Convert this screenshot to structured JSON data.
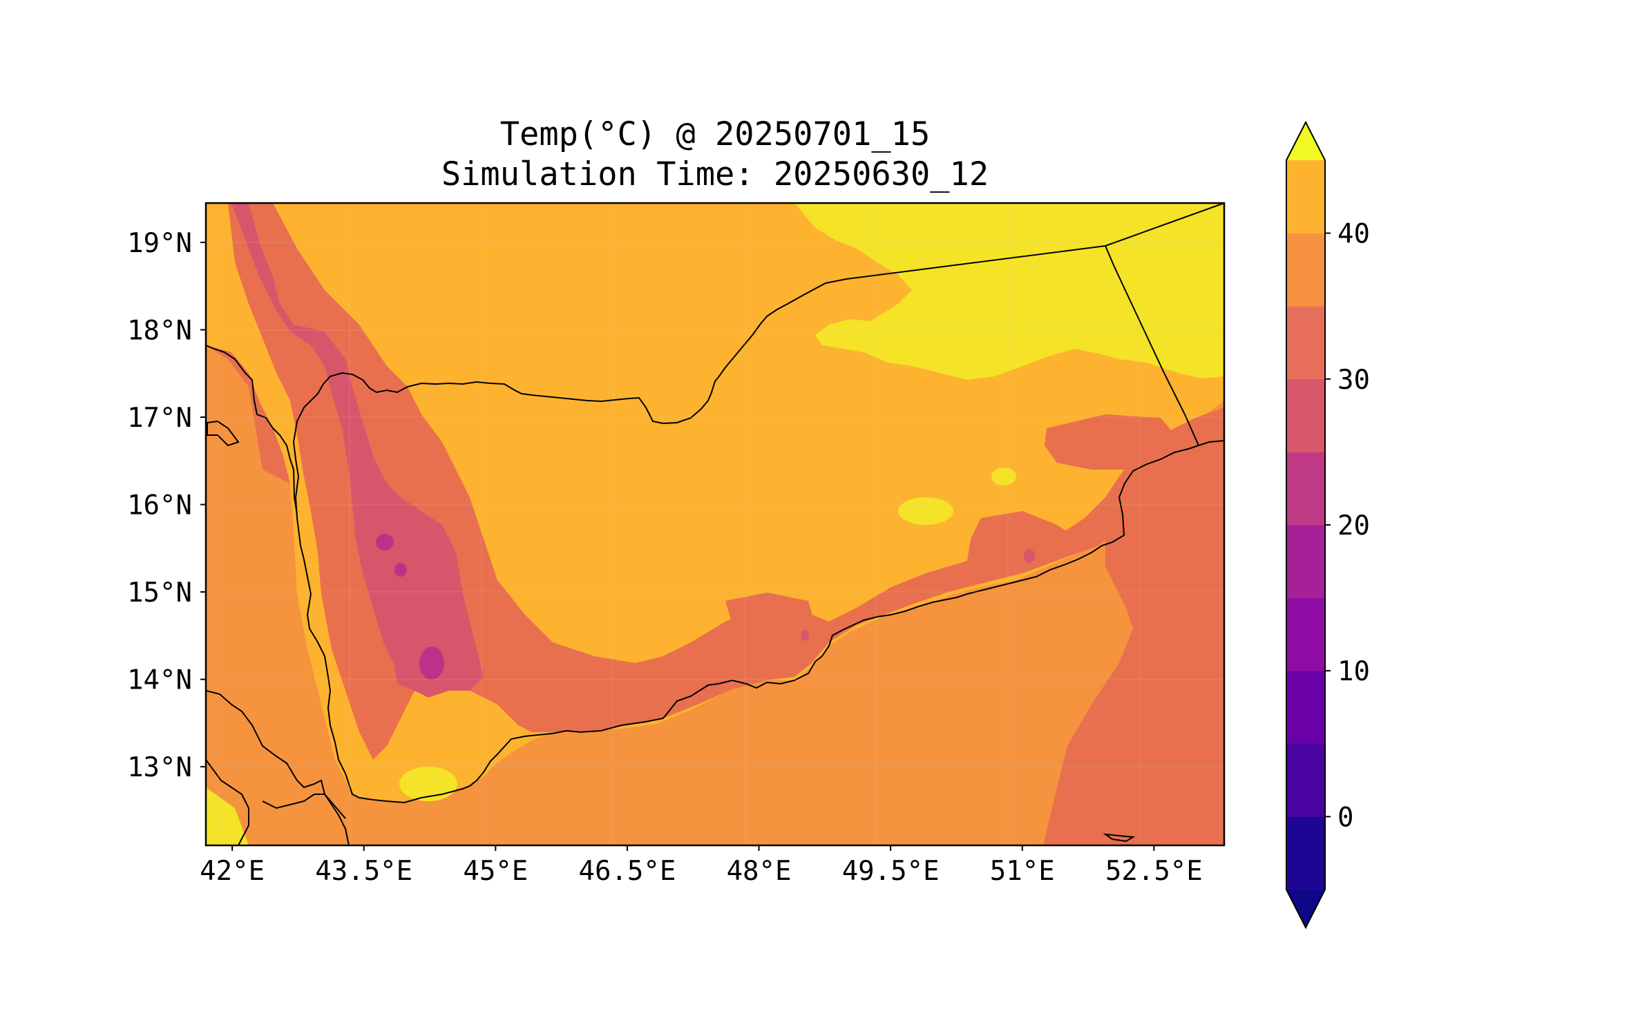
{
  "title": {
    "line1": "Temp(°C) @ 20250701_15",
    "line2": "Simulation Time: 20250630_12"
  },
  "map": {
    "lon_range": [
      41.7,
      53.3
    ],
    "lat_range": [
      12.1,
      19.45
    ],
    "lon_ticks": [
      {
        "value": 42,
        "label": "42°E"
      },
      {
        "value": 43.5,
        "label": "43.5°E"
      },
      {
        "value": 45,
        "label": "45°E"
      },
      {
        "value": 46.5,
        "label": "46.5°E"
      },
      {
        "value": 48,
        "label": "48°E"
      },
      {
        "value": 49.5,
        "label": "49.5°E"
      },
      {
        "value": 51,
        "label": "51°E"
      },
      {
        "value": 52.5,
        "label": "52.5°E"
      }
    ],
    "lat_ticks": [
      {
        "value": 19,
        "label": "19°N"
      },
      {
        "value": 18,
        "label": "18°N"
      },
      {
        "value": 17,
        "label": "17°N"
      },
      {
        "value": 16,
        "label": "16°N"
      },
      {
        "value": 15,
        "label": "15°N"
      },
      {
        "value": 14,
        "label": "14°N"
      },
      {
        "value": 13,
        "label": "13°N"
      }
    ]
  },
  "colorbar": {
    "min": -5,
    "max": 45,
    "step": 5,
    "extend": "both",
    "ticks": [
      {
        "value": 0,
        "label": "0"
      },
      {
        "value": 10,
        "label": "10"
      },
      {
        "value": 20,
        "label": "20"
      },
      {
        "value": 30,
        "label": "30"
      },
      {
        "value": 40,
        "label": "40"
      }
    ],
    "colors": [
      "#0d0887",
      "#1e0694",
      "#4903a0",
      "#6a00a8",
      "#8f0da4",
      "#a62098",
      "#bf3984",
      "#d8576b",
      "#e76f5a",
      "#f6923f",
      "#fdb32f",
      "#f3e42a"
    ],
    "under_color": "#0d0887",
    "over_color": "#f0f921"
  },
  "legend_palette": {
    "ocean_warm": "#f5933f",
    "arabian_sea_cooler": "#e8704e",
    "land_hot": "#fdb32f",
    "desert_hottest": "#f4e326",
    "highlands_cool": "#d8566b",
    "highlands_coolest": "#bb3389"
  }
}
